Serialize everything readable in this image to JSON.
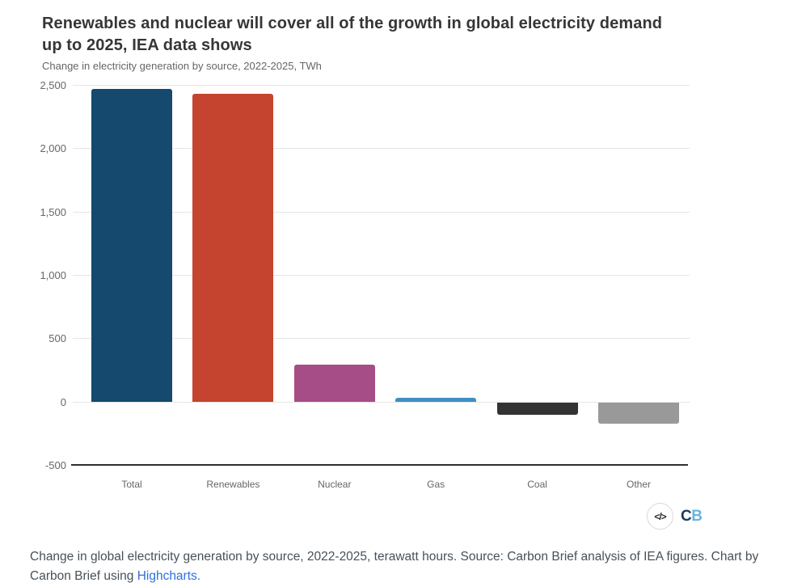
{
  "header": {
    "title": "Renewables and nuclear will cover all of the growth in global electricity demand up to 2025, IEA data shows",
    "subtitle": "Change in electricity generation by source, 2022-2025, TWh"
  },
  "chart_data": {
    "type": "bar",
    "title": "Renewables and nuclear will cover all of the growth in global electricity demand up to 2025, IEA data shows",
    "subtitle": "Change in electricity generation by source, 2022-2025, TWh",
    "unit": "TWh",
    "categories": [
      "Total",
      "Renewables",
      "Nuclear",
      "Gas",
      "Coal",
      "Other"
    ],
    "values": [
      2470,
      2430,
      290,
      30,
      -100,
      -165
    ],
    "bar_colors": [
      "#15496d",
      "#c44430",
      "#a64c87",
      "#3f8fc1",
      "#333333",
      "#999999"
    ],
    "ylim": [
      -500,
      2500
    ],
    "ytick_step": 500,
    "yticks": [
      {
        "label": "2,500",
        "value": 2500
      },
      {
        "label": "2,000",
        "value": 2000
      },
      {
        "label": "1,500",
        "value": 1500
      },
      {
        "label": "1,000",
        "value": 1000
      },
      {
        "label": "500",
        "value": 500
      },
      {
        "label": "0",
        "value": 0
      },
      {
        "label": "-500",
        "value": -500
      }
    ],
    "grid": true,
    "legend": "none",
    "colors": {
      "grid": "#e6e6e6",
      "axis": "#2f2f2f",
      "tick_text": "#666666"
    }
  },
  "footer": {
    "embed_icon": "</>",
    "logo_c": "C",
    "logo_b": "B"
  },
  "caption": {
    "text_before": "Change in global electricity generation by source, 2022-2025, terawatt hours. Source: Carbon Brief analysis of IEA figures. Chart by Carbon Brief using ",
    "link_label": "Highcharts",
    "text_after": "."
  }
}
